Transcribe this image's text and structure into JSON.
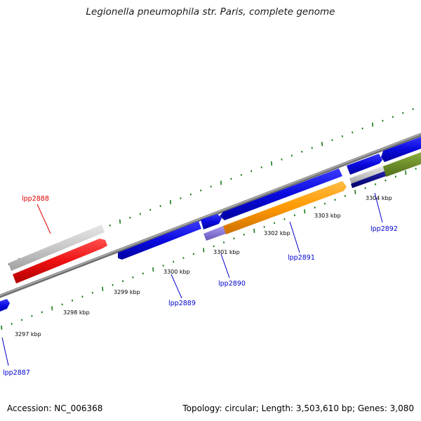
{
  "title": "Legionella pneumophila str. Paris, complete genome",
  "footer": {
    "accession": "Accession: NC_006368",
    "summary": "Topology: circular; Length: 3,503,610 bp; Genes: 3,080"
  },
  "axis_labels": [
    "3297 kbp",
    "3298 kbp",
    "3299 kbp",
    "3300 kbp",
    "3301 kbp",
    "3302 kbp",
    "3303 kbp",
    "3304 kbp"
  ],
  "gene_labels": [
    {
      "id": "lpp2887",
      "label": "lpp2887",
      "color": "#0000cc"
    },
    {
      "id": "lpp2888",
      "label": "lpp2888",
      "color": "#dd0000"
    },
    {
      "id": "lpp2889",
      "label": "lpp2889",
      "color": "#0000cc"
    },
    {
      "id": "lpp2890",
      "label": "lpp2890",
      "color": "#0000cc"
    },
    {
      "id": "lpp2891",
      "label": "lpp2891",
      "color": "#0000cc"
    },
    {
      "id": "lpp2892",
      "label": "lpp2892",
      "color": "#0000cc"
    }
  ],
  "colors": {
    "backbone": "#8a8a8a",
    "tick": "#1a7a1a",
    "gene_blue": "#0a0adf",
    "gene_red": "#ee1111",
    "gene_grey": "#c8c8c8",
    "gene_orange": "#ff9900",
    "gene_purple": "#8877dd",
    "gene_navy": "#000088",
    "gene_olive": "#6b8e23"
  }
}
